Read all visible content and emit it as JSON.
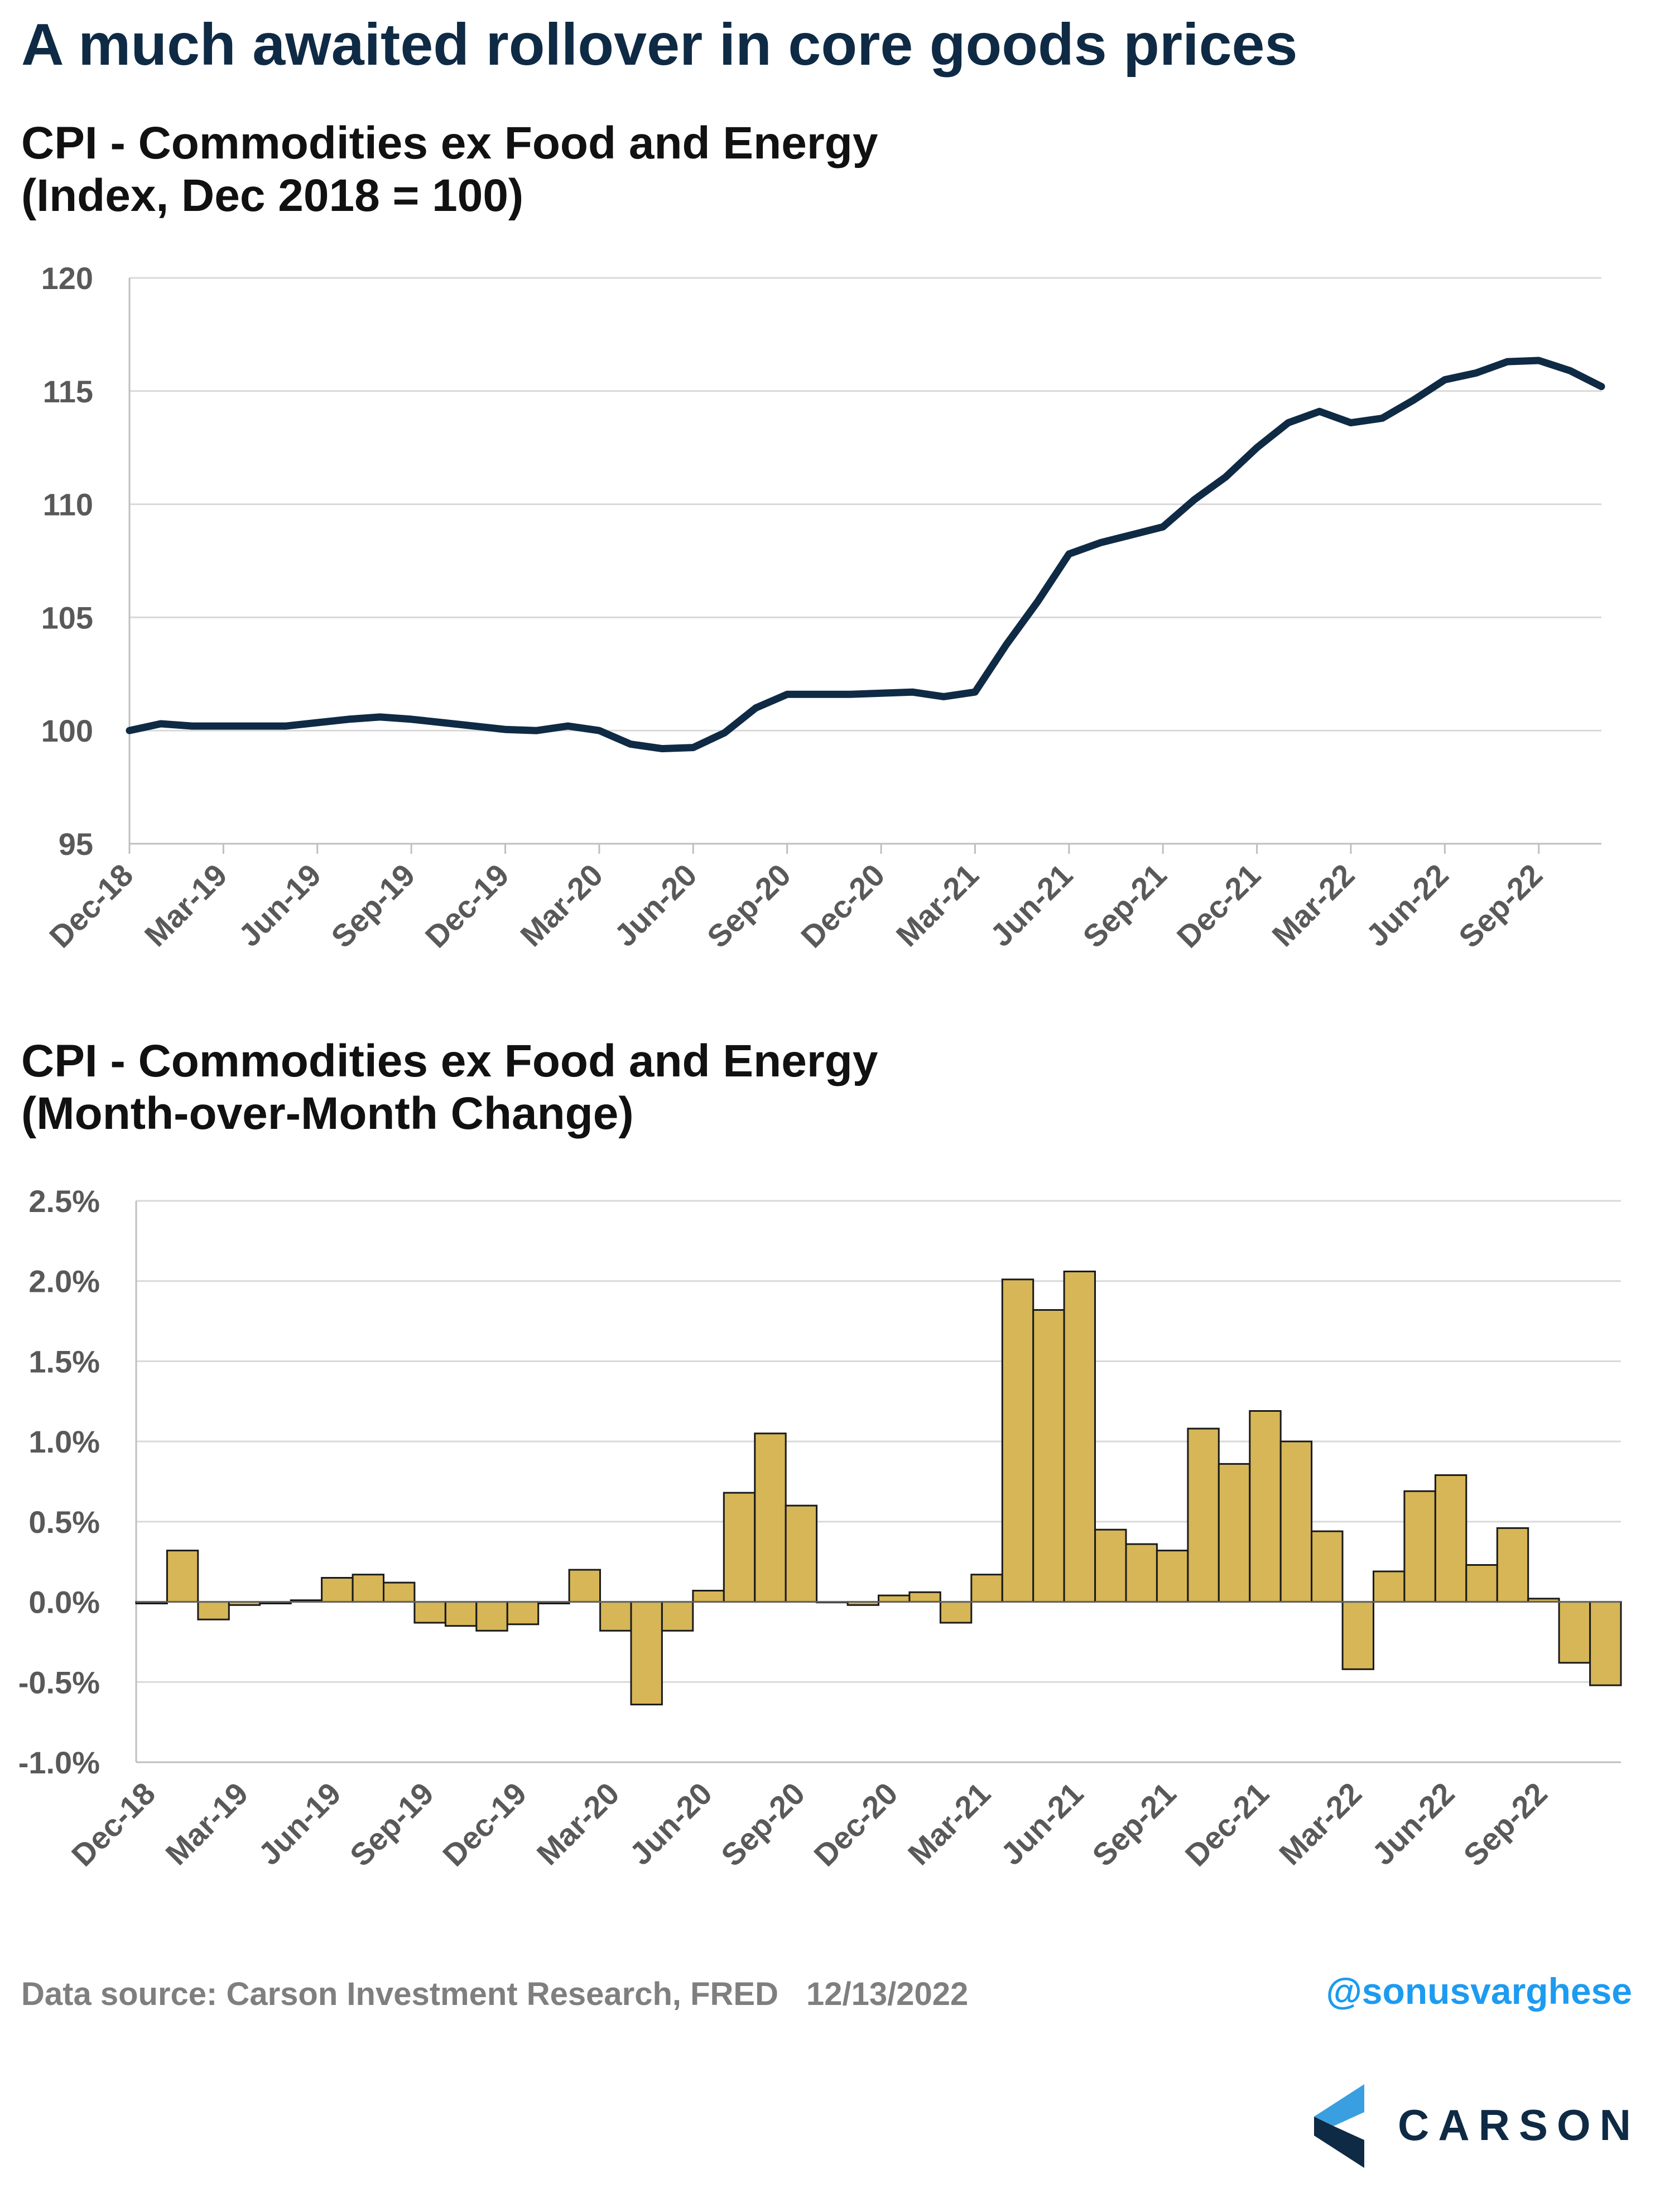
{
  "page_title": "A much awaited rollover in core goods prices",
  "footer": {
    "source": "Data source: Carson Investment Research, FRED",
    "date": "12/13/2022"
  },
  "handle": "@sonusvarghese",
  "logo": {
    "text": "CARSON"
  },
  "colors": {
    "title": "#0f2a44",
    "line": "#0f2a44",
    "bar_fill": "#d6b656",
    "bar_stroke": "#1a1a1a",
    "handle": "#1d9bf0",
    "grid": "#d9d9d9"
  },
  "chart_data": [
    {
      "type": "line",
      "title": "CPI - Commodities ex Food and Energy",
      "subtitle": "(Index, Dec 2018 = 100)",
      "xlabel": "",
      "ylabel": "",
      "ylim": [
        95,
        120
      ],
      "yticks": [
        "95",
        "100",
        "105",
        "110",
        "115",
        "120"
      ],
      "grid": true,
      "x_tick_labels": [
        "Dec-18",
        "Mar-19",
        "Jun-19",
        "Sep-19",
        "Dec-19",
        "Mar-20",
        "Jun-20",
        "Sep-20",
        "Dec-20",
        "Mar-21",
        "Jun-21",
        "Sep-21",
        "Dec-21",
        "Mar-22",
        "Jun-22",
        "Sep-22"
      ],
      "x": [
        "Dec-18",
        "Jan-19",
        "Feb-19",
        "Mar-19",
        "Apr-19",
        "May-19",
        "Jun-19",
        "Jul-19",
        "Aug-19",
        "Sep-19",
        "Oct-19",
        "Nov-19",
        "Dec-19",
        "Jan-20",
        "Feb-20",
        "Mar-20",
        "Apr-20",
        "May-20",
        "Jun-20",
        "Jul-20",
        "Aug-20",
        "Sep-20",
        "Oct-20",
        "Nov-20",
        "Dec-20",
        "Jan-21",
        "Feb-21",
        "Mar-21",
        "Apr-21",
        "May-21",
        "Jun-21",
        "Jul-21",
        "Aug-21",
        "Sep-21",
        "Oct-21",
        "Nov-21",
        "Dec-21",
        "Jan-22",
        "Feb-22",
        "Mar-22",
        "Apr-22",
        "May-22",
        "Jun-22",
        "Jul-22",
        "Aug-22",
        "Sep-22",
        "Oct-22",
        "Nov-22"
      ],
      "series": [
        {
          "values": [
            100.0,
            100.3,
            100.2,
            100.2,
            100.2,
            100.2,
            100.35,
            100.5,
            100.6,
            100.5,
            100.35,
            100.2,
            100.05,
            100.0,
            100.2,
            100.0,
            99.4,
            99.2,
            99.25,
            99.9,
            101.0,
            101.6,
            101.6,
            101.6,
            101.65,
            101.7,
            101.5,
            101.7,
            103.8,
            105.7,
            107.8,
            108.3,
            108.65,
            109.0,
            110.2,
            111.2,
            112.5,
            113.6,
            114.1,
            113.6,
            113.8,
            114.6,
            115.5,
            115.8,
            116.3,
            116.35,
            115.9,
            115.2
          ]
        }
      ]
    },
    {
      "type": "bar",
      "title": "CPI - Commodities ex Food and Energy",
      "subtitle": "(Month-over-Month Change)",
      "xlabel": "",
      "ylabel": "",
      "ylim": [
        -1.0,
        2.5
      ],
      "yticks": [
        "-1.0%",
        "-0.5%",
        "0.0%",
        "0.5%",
        "1.0%",
        "1.5%",
        "2.0%",
        "2.5%"
      ],
      "grid": true,
      "x_tick_labels": [
        "Dec-18",
        "Mar-19",
        "Jun-19",
        "Sep-19",
        "Dec-19",
        "Mar-20",
        "Jun-20",
        "Sep-20",
        "Dec-20",
        "Mar-21",
        "Jun-21",
        "Sep-21",
        "Dec-21",
        "Mar-22",
        "Jun-22",
        "Sep-22"
      ],
      "categories": [
        "Dec-18",
        "Jan-19",
        "Feb-19",
        "Mar-19",
        "Apr-19",
        "May-19",
        "Jun-19",
        "Jul-19",
        "Aug-19",
        "Sep-19",
        "Oct-19",
        "Nov-19",
        "Dec-19",
        "Jan-20",
        "Feb-20",
        "Mar-20",
        "Apr-20",
        "May-20",
        "Jun-20",
        "Jul-20",
        "Aug-20",
        "Sep-20",
        "Oct-20",
        "Nov-20",
        "Dec-20",
        "Jan-21",
        "Feb-21",
        "Mar-21",
        "Apr-21",
        "May-21",
        "Jun-21",
        "Jul-21",
        "Aug-21",
        "Sep-21",
        "Oct-21",
        "Nov-21",
        "Dec-21",
        "Jan-22",
        "Feb-22",
        "Mar-22",
        "Apr-22",
        "May-22",
        "Jun-22",
        "Jul-22",
        "Aug-22",
        "Sep-22",
        "Oct-22",
        "Nov-22"
      ],
      "values": [
        -0.01,
        0.32,
        -0.11,
        -0.02,
        -0.01,
        0.01,
        0.15,
        0.17,
        0.12,
        -0.13,
        -0.15,
        -0.18,
        -0.14,
        -0.01,
        0.2,
        -0.18,
        -0.64,
        -0.18,
        0.07,
        0.68,
        1.05,
        0.6,
        0.0,
        -0.02,
        0.04,
        0.06,
        -0.13,
        0.17,
        2.01,
        1.82,
        2.06,
        0.45,
        0.36,
        0.32,
        1.08,
        0.86,
        1.19,
        1.0,
        0.44,
        -0.42,
        0.19,
        0.69,
        0.79,
        0.23,
        0.46,
        0.02,
        -0.38,
        -0.52
      ]
    }
  ]
}
